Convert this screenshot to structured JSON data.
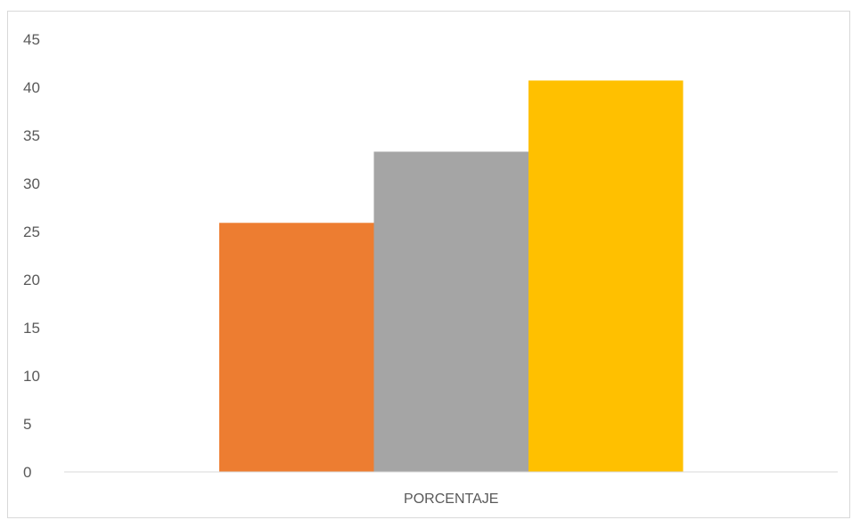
{
  "chart_data": {
    "type": "bar",
    "categories": [
      "PORCENTAJE"
    ],
    "series": [
      {
        "values": [
          25.9
        ],
        "color": "#ED7D31"
      },
      {
        "values": [
          33.3
        ],
        "color": "#A5A5A5"
      },
      {
        "values": [
          40.7
        ],
        "color": "#FFC000"
      }
    ],
    "title": "",
    "xlabel": "",
    "ylabel": "",
    "ylim": [
      0,
      45
    ],
    "yticks": [
      "0",
      "5",
      "10",
      "15",
      "20",
      "25",
      "30",
      "35",
      "40",
      "45"
    ],
    "grid": false,
    "legend": "none"
  }
}
